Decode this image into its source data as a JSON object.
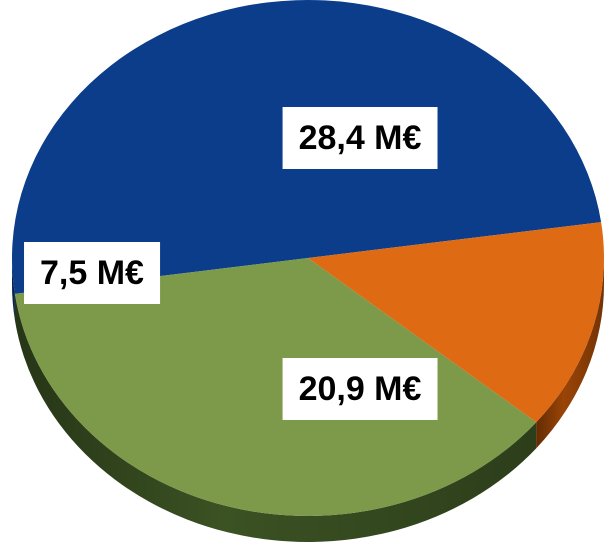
{
  "chart_data": {
    "type": "pie",
    "style": "3d",
    "unit": "M€",
    "series": [
      {
        "values": [
          28.4,
          20.9,
          7.5
        ],
        "labels": [
          "28,4 M€",
          "20,9 M€",
          "7,5 M€"
        ],
        "colors": [
          "#0b3d8a",
          "#7d9a4b",
          "#de6a13"
        ],
        "side_colors": [
          "#07255a",
          "#3b5223",
          "#9a4406"
        ]
      }
    ],
    "title": "",
    "legend": "none"
  }
}
